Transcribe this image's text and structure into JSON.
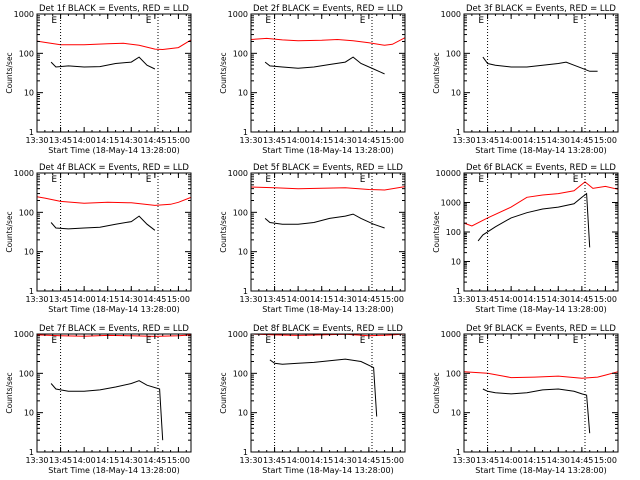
{
  "colors": {
    "events": "#000000",
    "lld": "#ff0000",
    "axis": "#000000",
    "background": "#ffffff"
  },
  "shared": {
    "xlabel": "Start Time (18-May-14 13:28:00)",
    "ylabel": "Counts/sec",
    "x_ticks": [
      "13:30",
      "13:45",
      "14:00",
      "14:15",
      "14:30",
      "14:45",
      "15:00"
    ],
    "event_markers": [
      {
        "time": "13:43",
        "label": "E"
      },
      {
        "time": "14:43",
        "label": "E"
      }
    ],
    "dotted_vertical_lines": [
      "13:45",
      "14:47"
    ]
  },
  "chart_data": [
    {
      "type": "line",
      "title": "Det 1f BLACK = Events, RED = LLD",
      "xlim": [
        "13:30",
        "15:08"
      ],
      "ylim": [
        1,
        1000
      ],
      "yscale": "log",
      "y_ticks": [
        "1",
        "10",
        "100",
        "1000"
      ],
      "series": [
        {
          "name": "Events",
          "color": "#000000",
          "x": [
            "13:39",
            "13:42",
            "13:50",
            "14:00",
            "14:10",
            "14:20",
            "14:30",
            "14:35",
            "14:40",
            "14:45"
          ],
          "y": [
            60,
            45,
            48,
            45,
            46,
            55,
            60,
            80,
            50,
            40
          ]
        },
        {
          "name": "LLD",
          "color": "#ff0000",
          "x": [
            "13:30",
            "13:35",
            "13:45",
            "14:00",
            "14:15",
            "14:25",
            "14:35",
            "14:45",
            "14:50",
            "15:00",
            "15:08"
          ],
          "y": [
            205,
            190,
            165,
            165,
            175,
            180,
            160,
            128,
            125,
            140,
            220
          ]
        }
      ]
    },
    {
      "type": "line",
      "title": "Det 2f BLACK = Events, RED = LLD",
      "xlim": [
        "13:30",
        "15:08"
      ],
      "ylim": [
        1,
        1000
      ],
      "yscale": "log",
      "y_ticks": [
        "1",
        "10",
        "100",
        "1000"
      ],
      "series": [
        {
          "name": "Events",
          "color": "#000000",
          "x": [
            "13:39",
            "13:42",
            "13:50",
            "14:00",
            "14:10",
            "14:20",
            "14:30",
            "14:35",
            "14:40",
            "14:48",
            "14:55"
          ],
          "y": [
            60,
            48,
            45,
            42,
            45,
            52,
            60,
            80,
            55,
            40,
            30
          ]
        },
        {
          "name": "LLD",
          "color": "#ff0000",
          "x": [
            "13:30",
            "13:40",
            "13:50",
            "14:00",
            "14:15",
            "14:25",
            "14:35",
            "14:45",
            "14:55",
            "15:00",
            "15:08"
          ],
          "y": [
            225,
            240,
            220,
            210,
            215,
            225,
            210,
            185,
            160,
            170,
            250
          ]
        }
      ]
    },
    {
      "type": "line",
      "title": "Det 3f BLACK = Events, RED = LLD",
      "xlim": [
        "13:30",
        "15:08"
      ],
      "ylim": [
        1,
        1000
      ],
      "yscale": "log",
      "y_ticks": [
        "1",
        "10",
        "100",
        "1000"
      ],
      "series": [
        {
          "name": "Events",
          "color": "#000000",
          "x": [
            "13:42",
            "13:45",
            "13:50",
            "14:00",
            "14:10",
            "14:20",
            "14:30",
            "14:35",
            "14:40",
            "14:45",
            "14:50",
            "14:55"
          ],
          "y": [
            80,
            55,
            50,
            45,
            45,
            50,
            55,
            60,
            50,
            42,
            35,
            35
          ]
        }
      ]
    },
    {
      "type": "line",
      "title": "Det 4f BLACK = Events, RED = LLD",
      "xlim": [
        "13:30",
        "15:08"
      ],
      "ylim": [
        1,
        1000
      ],
      "yscale": "log",
      "y_ticks": [
        "1",
        "10",
        "100",
        "1000"
      ],
      "series": [
        {
          "name": "Events",
          "color": "#000000",
          "x": [
            "13:39",
            "13:42",
            "13:50",
            "14:00",
            "14:10",
            "14:20",
            "14:30",
            "14:35",
            "14:40",
            "14:45"
          ],
          "y": [
            55,
            40,
            38,
            40,
            42,
            50,
            58,
            80,
            50,
            35
          ]
        },
        {
          "name": "LLD",
          "color": "#ff0000",
          "x": [
            "13:30",
            "13:35",
            "13:45",
            "14:00",
            "14:15",
            "14:30",
            "14:45",
            "14:55",
            "15:00",
            "15:08"
          ],
          "y": [
            250,
            230,
            190,
            170,
            180,
            175,
            150,
            160,
            180,
            240
          ]
        }
      ]
    },
    {
      "type": "line",
      "title": "Det 5f BLACK = Events, RED = LLD",
      "xlim": [
        "13:30",
        "15:08"
      ],
      "ylim": [
        1,
        1000
      ],
      "yscale": "log",
      "y_ticks": [
        "1",
        "10",
        "100",
        "1000"
      ],
      "series": [
        {
          "name": "Events",
          "color": "#000000",
          "x": [
            "13:39",
            "13:42",
            "13:50",
            "14:00",
            "14:10",
            "14:20",
            "14:30",
            "14:35",
            "14:40",
            "14:48",
            "14:55"
          ],
          "y": [
            70,
            55,
            50,
            50,
            55,
            70,
            80,
            90,
            70,
            50,
            40
          ]
        },
        {
          "name": "LLD",
          "color": "#ff0000",
          "x": [
            "13:30",
            "13:45",
            "14:00",
            "14:15",
            "14:30",
            "14:45",
            "14:55",
            "15:08"
          ],
          "y": [
            440,
            420,
            400,
            410,
            420,
            380,
            370,
            450
          ]
        }
      ]
    },
    {
      "type": "line",
      "title": "Det 6f BLACK = Events, RED = LLD",
      "xlim": [
        "13:30",
        "15:08"
      ],
      "ylim": [
        1,
        10000
      ],
      "yscale": "log",
      "y_ticks": [
        "1",
        "10",
        "100",
        "1000",
        "10000"
      ],
      "series": [
        {
          "name": "Events",
          "color": "#000000",
          "x": [
            "13:39",
            "13:42",
            "13:50",
            "14:00",
            "14:10",
            "14:20",
            "14:30",
            "14:40",
            "14:45",
            "14:48",
            "14:50"
          ],
          "y": [
            50,
            80,
            150,
            300,
            450,
            600,
            700,
            900,
            1500,
            2000,
            30
          ]
        },
        {
          "name": "LLD",
          "color": "#ff0000",
          "x": [
            "13:30",
            "13:35",
            "13:45",
            "14:00",
            "14:10",
            "14:20",
            "14:30",
            "14:40",
            "14:47",
            "14:52",
            "15:00",
            "15:08"
          ],
          "y": [
            200,
            160,
            300,
            700,
            1500,
            1800,
            2000,
            2500,
            5000,
            3000,
            3500,
            2800
          ]
        }
      ]
    },
    {
      "type": "line",
      "title": "Det 7f BLACK = Events, RED = LLD",
      "xlim": [
        "13:30",
        "15:08"
      ],
      "ylim": [
        1,
        1000
      ],
      "yscale": "log",
      "y_ticks": [
        "1",
        "10",
        "100",
        "1000"
      ],
      "series": [
        {
          "name": "Events",
          "color": "#000000",
          "x": [
            "13:39",
            "13:42",
            "13:50",
            "14:00",
            "14:10",
            "14:20",
            "14:30",
            "14:35",
            "14:40",
            "14:48",
            "14:50"
          ],
          "y": [
            55,
            40,
            35,
            35,
            38,
            45,
            55,
            65,
            50,
            40,
            2
          ]
        },
        {
          "name": "LLD",
          "color": "#ff0000",
          "x": [
            "13:30",
            "13:45",
            "14:00",
            "14:15",
            "14:30",
            "14:45",
            "15:00",
            "15:08"
          ],
          "y": [
            950,
            900,
            880,
            920,
            900,
            870,
            900,
            950
          ]
        }
      ]
    },
    {
      "type": "line",
      "title": "Det 8f BLACK = Events, RED = LLD",
      "xlim": [
        "13:30",
        "15:08"
      ],
      "ylim": [
        1,
        1000
      ],
      "yscale": "log",
      "y_ticks": [
        "1",
        "10",
        "100",
        "1000"
      ],
      "series": [
        {
          "name": "Events",
          "color": "#000000",
          "x": [
            "13:42",
            "13:45",
            "13:50",
            "14:00",
            "14:10",
            "14:20",
            "14:30",
            "14:40",
            "14:48",
            "14:50"
          ],
          "y": [
            220,
            180,
            170,
            180,
            190,
            210,
            230,
            200,
            140,
            8
          ]
        },
        {
          "name": "LLD",
          "color": "#ff0000",
          "x": [
            "13:30",
            "13:45",
            "14:00",
            "14:15",
            "14:30",
            "14:45",
            "15:00",
            "15:08"
          ],
          "y": [
            1000,
            950,
            920,
            950,
            980,
            900,
            950,
            1000
          ]
        }
      ]
    },
    {
      "type": "line",
      "title": "Det 9f BLACK = Events, RED = LLD",
      "xlim": [
        "13:30",
        "15:08"
      ],
      "ylim": [
        1,
        1000
      ],
      "yscale": "log",
      "y_ticks": [
        "1",
        "10",
        "100",
        "1000"
      ],
      "series": [
        {
          "name": "Events",
          "color": "#000000",
          "x": [
            "13:42",
            "13:45",
            "13:50",
            "14:00",
            "14:10",
            "14:20",
            "14:30",
            "14:40",
            "14:45",
            "14:48",
            "14:50"
          ],
          "y": [
            40,
            35,
            32,
            30,
            32,
            38,
            40,
            35,
            30,
            28,
            3
          ]
        },
        {
          "name": "LLD",
          "color": "#ff0000",
          "x": [
            "13:30",
            "13:45",
            "13:55",
            "14:00",
            "14:15",
            "14:30",
            "14:45",
            "14:55",
            "15:00",
            "15:08"
          ],
          "y": [
            110,
            100,
            85,
            78,
            80,
            85,
            75,
            80,
            90,
            110
          ]
        }
      ]
    }
  ]
}
